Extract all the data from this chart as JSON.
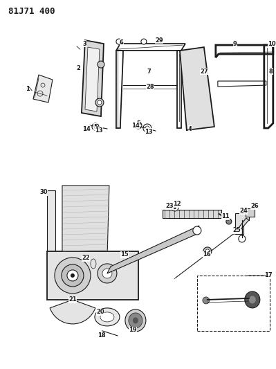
{
  "title": "81J71 400",
  "bg_color": "#ffffff",
  "title_fontsize": 9,
  "title_fontweight": "bold",
  "line_color": "#1a1a1a",
  "label_fontsize": 6.0,
  "fig_w": 3.99,
  "fig_h": 5.33,
  "dpi": 100
}
